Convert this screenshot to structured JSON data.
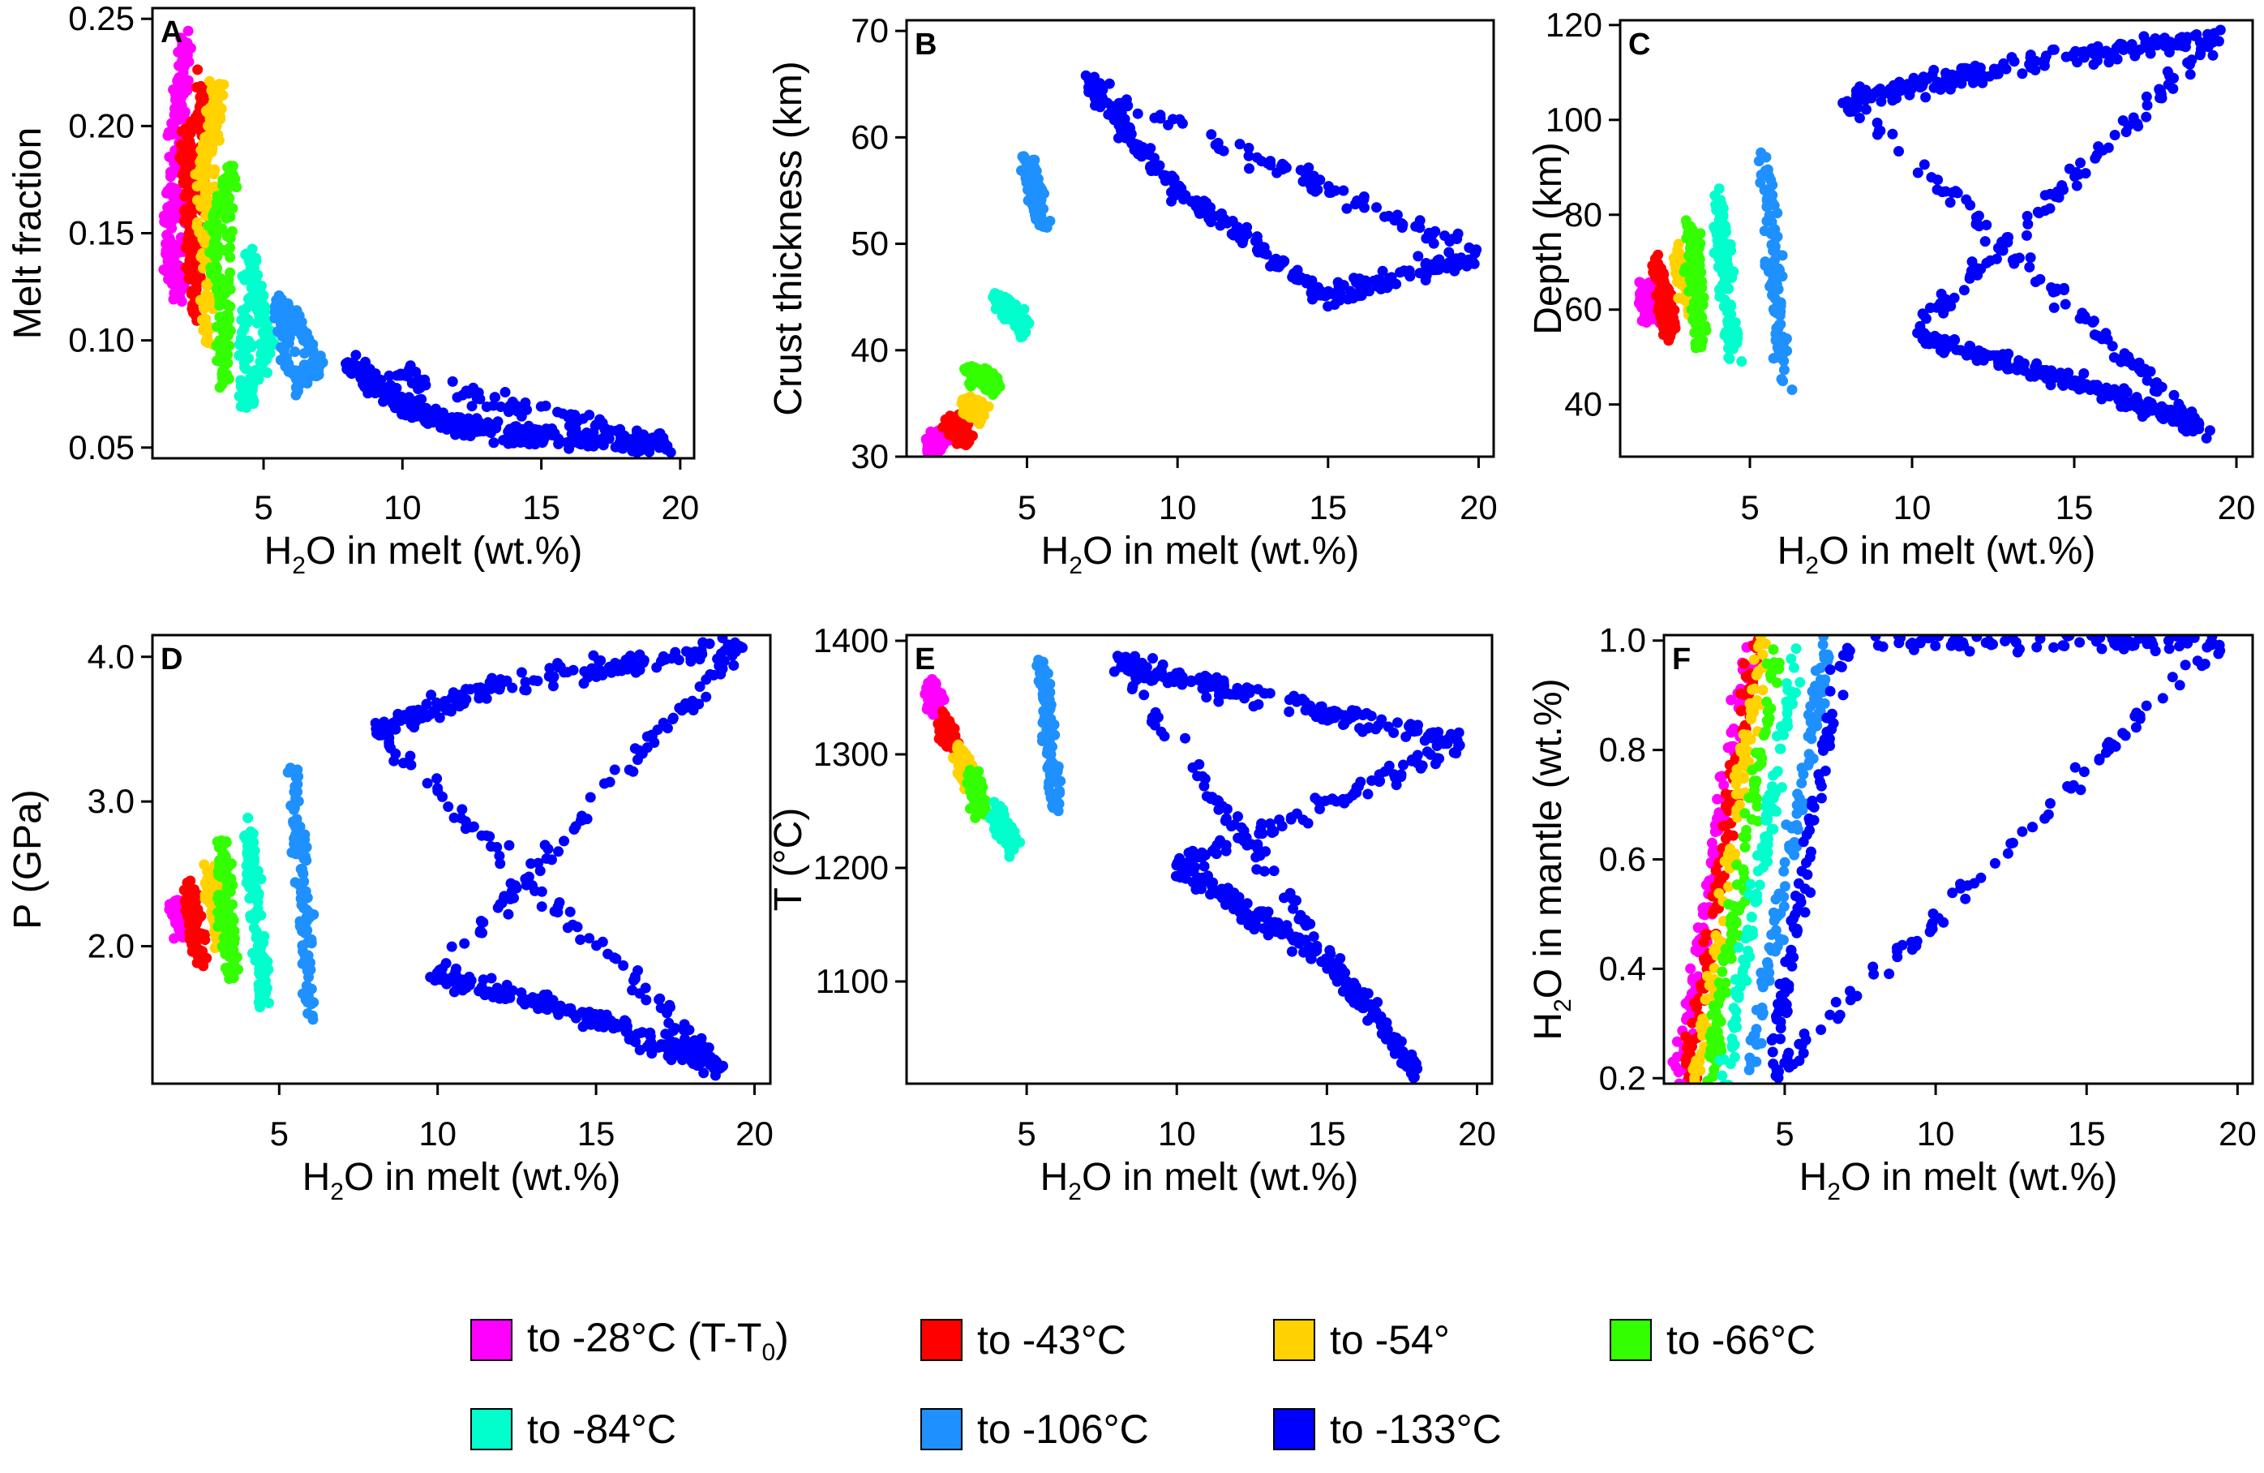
{
  "figure": {
    "x_axis_label_prefix": "H",
    "x_axis_label_sub": "2",
    "x_axis_label_suffix": "O in melt (wt.%)"
  },
  "chart_data": [
    {
      "type": "scatter",
      "id": "A",
      "panel_label": "A",
      "xlabel": "H2O in melt (wt.%)",
      "ylabel": "Melt fraction",
      "xlim": [
        1.0,
        20.5
      ],
      "ylim": [
        0.045,
        0.255
      ],
      "xticks": [
        5,
        10,
        15,
        20
      ],
      "xtick_labels": [
        "5",
        "10",
        "15",
        "20"
      ],
      "yticks": [
        0.05,
        0.1,
        0.15,
        0.2,
        0.25
      ],
      "ytick_labels": [
        "0.05",
        "0.10",
        "0.15",
        "0.20",
        "0.25"
      ],
      "ylabel_parts": {
        "pre": "Melt fraction",
        "sub": "",
        "post": ""
      },
      "series": [
        {
          "name": "to -28°C",
          "points": [
            [
              1.6,
              0.14
            ],
            [
              1.8,
              0.2
            ],
            [
              2.2,
              0.24
            ],
            [
              2.0,
              0.12
            ]
          ]
        },
        {
          "name": "to -43°C",
          "points": [
            [
              2.2,
              0.2
            ],
            [
              2.4,
              0.13
            ],
            [
              2.8,
              0.22
            ],
            [
              2.5,
              0.11
            ]
          ]
        },
        {
          "name": "to -54°",
          "points": [
            [
              2.8,
              0.18
            ],
            [
              3.4,
              0.22
            ],
            [
              3.0,
              0.1
            ]
          ]
        },
        {
          "name": "to -66°C",
          "points": [
            [
              3.2,
              0.15
            ],
            [
              3.8,
              0.18
            ],
            [
              3.6,
              0.08
            ]
          ]
        },
        {
          "name": "to -84°C",
          "points": [
            [
              4.5,
              0.14
            ],
            [
              4.3,
              0.07
            ],
            [
              5.2,
              0.1
            ]
          ]
        },
        {
          "name": "to -106°C",
          "points": [
            [
              5.5,
              0.12
            ],
            [
              6.2,
              0.08
            ],
            [
              7.0,
              0.09
            ]
          ]
        },
        {
          "name": "to -133°C",
          "points": [
            [
              8,
              0.09
            ],
            [
              10,
              0.07
            ],
            [
              12,
              0.06
            ],
            [
              15,
              0.055
            ],
            [
              19.5,
              0.052
            ]
          ]
        }
      ]
    },
    {
      "type": "scatter",
      "id": "B",
      "panel_label": "B",
      "xlabel": "H2O in melt (wt.%)",
      "ylabel": "Crust thickness (km)",
      "xlim": [
        1.0,
        20.5
      ],
      "ylim": [
        30,
        71
      ],
      "xticks": [
        5,
        10,
        15,
        20
      ],
      "xtick_labels": [
        "5",
        "10",
        "15",
        "20"
      ],
      "yticks": [
        30,
        40,
        50,
        60,
        70
      ],
      "ytick_labels": [
        "30",
        "40",
        "50",
        "60",
        "70"
      ],
      "ylabel_parts": {
        "pre": "Crust thickness (km)",
        "sub": "",
        "post": ""
      },
      "series": [
        {
          "name": "to -28°C",
          "points": [
            [
              1.8,
              31
            ],
            [
              2.2,
              32
            ]
          ]
        },
        {
          "name": "to -43°C",
          "points": [
            [
              2.5,
              33
            ],
            [
              3,
              32
            ]
          ]
        },
        {
          "name": "to -54°",
          "points": [
            [
              3,
              35
            ],
            [
              3.5,
              34
            ]
          ]
        },
        {
          "name": "to -66°C",
          "points": [
            [
              3,
              38
            ],
            [
              4,
              37
            ]
          ]
        },
        {
          "name": "to -84°C",
          "points": [
            [
              4,
              45
            ],
            [
              5,
              42
            ]
          ]
        },
        {
          "name": "to -106°C",
          "points": [
            [
              5,
              58
            ],
            [
              5.5,
              52
            ]
          ]
        },
        {
          "name": "to -133°C",
          "points": [
            [
              7,
              65
            ],
            [
              10,
              55
            ],
            [
              15,
              45
            ],
            [
              20,
              49
            ]
          ]
        }
      ]
    },
    {
      "type": "scatter",
      "id": "C",
      "panel_label": "C",
      "xlabel": "H2O in melt (wt.%)",
      "ylabel": "Depth (km)",
      "xlim": [
        1.0,
        20.5
      ],
      "ylim": [
        29,
        121
      ],
      "xticks": [
        5,
        10,
        15,
        20
      ],
      "xtick_labels": [
        "5",
        "10",
        "15",
        "20"
      ],
      "yticks": [
        40,
        60,
        80,
        100,
        120
      ],
      "ytick_labels": [
        "40",
        "60",
        "80",
        "100",
        "120"
      ],
      "ylabel_parts": {
        "pre": "Depth (km)",
        "sub": "",
        "post": ""
      },
      "series": [
        {
          "name": "to -28°C",
          "points": [
            [
              1.7,
              65
            ],
            [
              2.0,
              58
            ]
          ]
        },
        {
          "name": "to -43°C",
          "points": [
            [
              2.2,
              70
            ],
            [
              2.5,
              55
            ]
          ]
        },
        {
          "name": "to -54°",
          "points": [
            [
              2.8,
              72
            ],
            [
              3.2,
              60
            ]
          ]
        },
        {
          "name": "to -66°C",
          "points": [
            [
              3.2,
              78
            ],
            [
              3.5,
              52
            ]
          ]
        },
        {
          "name": "to -84°C",
          "points": [
            [
              4,
              85
            ],
            [
              4.5,
              50
            ]
          ]
        },
        {
          "name": "to -106°C",
          "points": [
            [
              5.5,
              92
            ],
            [
              6,
              45
            ]
          ]
        },
        {
          "name": "to -133°C",
          "points": [
            [
              8,
              104
            ],
            [
              12,
              110
            ],
            [
              19.5,
              118
            ],
            [
              10,
              55
            ],
            [
              15,
              45
            ],
            [
              19,
              35
            ]
          ]
        }
      ]
    },
    {
      "type": "scatter",
      "id": "D",
      "panel_label": "D",
      "xlabel": "H2O in melt (wt.%)",
      "ylabel": "P (GPa)",
      "xlim": [
        1.0,
        20.5
      ],
      "ylim": [
        1.05,
        4.15
      ],
      "xticks": [
        5,
        10,
        15,
        20
      ],
      "xtick_labels": [
        "5",
        "10",
        "15",
        "20"
      ],
      "yticks": [
        2.0,
        3.0,
        4.0
      ],
      "ytick_labels": [
        "2.0",
        "3.0",
        "4.0"
      ],
      "ylabel_parts": {
        "pre": "P (GPa)",
        "sub": "",
        "post": ""
      },
      "series": [
        {
          "name": "to -28°C",
          "points": [
            [
              1.7,
              2.3
            ],
            [
              2.0,
              2.1
            ]
          ]
        },
        {
          "name": "to -43°C",
          "points": [
            [
              2.2,
              2.4
            ],
            [
              2.5,
              1.9
            ]
          ]
        },
        {
          "name": "to -54°",
          "points": [
            [
              2.8,
              2.5
            ],
            [
              3.2,
              2.0
            ]
          ]
        },
        {
          "name": "to -66°C",
          "points": [
            [
              3.2,
              2.7
            ],
            [
              3.5,
              1.8
            ]
          ]
        },
        {
          "name": "to -84°C",
          "points": [
            [
              4,
              2.9
            ],
            [
              4.5,
              1.6
            ]
          ]
        },
        {
          "name": "to -106°C",
          "points": [
            [
              5.5,
              3.2
            ],
            [
              6,
              1.5
            ]
          ]
        },
        {
          "name": "to -133°C",
          "points": [
            [
              8,
              3.5
            ],
            [
              12,
              3.8
            ],
            [
              19.5,
              4.08
            ],
            [
              10,
              1.8
            ],
            [
              15,
              1.5
            ],
            [
              19,
              1.15
            ]
          ]
        }
      ]
    },
    {
      "type": "scatter",
      "id": "E",
      "panel_label": "E",
      "xlabel": "H2O in melt (wt.%)",
      "ylabel": "T (°C)",
      "xlim": [
        1.0,
        20.5
      ],
      "ylim": [
        1010,
        1405
      ],
      "xticks": [
        5,
        10,
        15,
        20
      ],
      "xtick_labels": [
        "5",
        "10",
        "15",
        "20"
      ],
      "yticks": [
        1100,
        1200,
        1300,
        1400
      ],
      "ytick_labels": [
        "1100",
        "1200",
        "1300",
        "1400"
      ],
      "ylabel_parts": {
        "pre": "T (°C)",
        "sub": "",
        "post": ""
      },
      "series": [
        {
          "name": "to -28°C",
          "points": [
            [
              1.8,
              1360
            ],
            [
              2.0,
              1340
            ]
          ]
        },
        {
          "name": "to -43°C",
          "points": [
            [
              2.2,
              1330
            ],
            [
              2.5,
              1310
            ]
          ]
        },
        {
          "name": "to -54°",
          "points": [
            [
              2.8,
              1300
            ],
            [
              3.2,
              1270
            ]
          ]
        },
        {
          "name": "to -66°C",
          "points": [
            [
              3.2,
              1280
            ],
            [
              3.5,
              1250
            ]
          ]
        },
        {
          "name": "to -84°C",
          "points": [
            [
              4,
              1250
            ],
            [
              4.5,
              1220
            ]
          ]
        },
        {
          "name": "to -106°C",
          "points": [
            [
              5.5,
              1380
            ],
            [
              6,
              1250
            ]
          ]
        },
        {
          "name": "to -133°C",
          "points": [
            [
              8,
              1380
            ],
            [
              12,
              1355
            ],
            [
              19.5,
              1310
            ],
            [
              10,
              1200
            ],
            [
              15,
              1120
            ],
            [
              18,
              1020
            ]
          ]
        }
      ]
    },
    {
      "type": "scatter",
      "id": "F",
      "panel_label": "F",
      "xlabel": "H2O in melt (wt.%)",
      "ylabel": "H2O in mantle (wt.%)",
      "xlim": [
        1.0,
        20.5
      ],
      "ylim": [
        0.19,
        1.01
      ],
      "xticks": [
        5,
        10,
        15,
        20
      ],
      "xtick_labels": [
        "5",
        "10",
        "15",
        "20"
      ],
      "yticks": [
        0.2,
        0.4,
        0.6,
        0.8,
        1.0
      ],
      "ytick_labels": [
        "0.2",
        "0.4",
        "0.6",
        "0.8",
        "1.0"
      ],
      "ylabel_parts": {
        "pre": "H",
        "sub": "2",
        "post": "O in mantle (wt.%)"
      },
      "series": [
        {
          "name": "to -28°C",
          "points": [
            [
              1.5,
              0.2
            ],
            [
              3.8,
              1.0
            ]
          ]
        },
        {
          "name": "to -43°C",
          "points": [
            [
              1.8,
              0.2
            ],
            [
              4.0,
              1.0
            ]
          ]
        },
        {
          "name": "to -54°",
          "points": [
            [
              2.1,
              0.2
            ],
            [
              4.3,
              1.0
            ]
          ]
        },
        {
          "name": "to -66°C",
          "points": [
            [
              2.5,
              0.2
            ],
            [
              4.8,
              1.0
            ]
          ]
        },
        {
          "name": "to -84°C",
          "points": [
            [
              3.0,
              0.2
            ],
            [
              5.5,
              1.0
            ]
          ]
        },
        {
          "name": "to -106°C",
          "points": [
            [
              3.8,
              0.2
            ],
            [
              6.5,
              1.0
            ]
          ]
        },
        {
          "name": "to -133°C",
          "points": [
            [
              4.5,
              0.2
            ],
            [
              19.5,
              1.0
            ],
            [
              7,
              1.0
            ]
          ]
        }
      ]
    }
  ],
  "legend": {
    "items": [
      {
        "label_main": "to -28°C (T-T",
        "label_sub": "0",
        "label_end": ")",
        "color": "#ff00ff"
      },
      {
        "label_main": "to -43°C",
        "label_sub": "",
        "label_end": "",
        "color": "#ff0000"
      },
      {
        "label_main": "to -54°",
        "label_sub": "",
        "label_end": "",
        "color": "#ffd200"
      },
      {
        "label_main": "to -66°C",
        "label_sub": "",
        "label_end": "",
        "color": "#33ff00"
      },
      {
        "label_main": "to -84°C",
        "label_sub": "",
        "label_end": "",
        "color": "#00ffcc"
      },
      {
        "label_main": "to -106°C",
        "label_sub": "",
        "label_end": "",
        "color": "#1e90ff"
      },
      {
        "label_main": "to -133°C",
        "label_sub": "",
        "label_end": "",
        "color": "#0000ff"
      }
    ]
  }
}
